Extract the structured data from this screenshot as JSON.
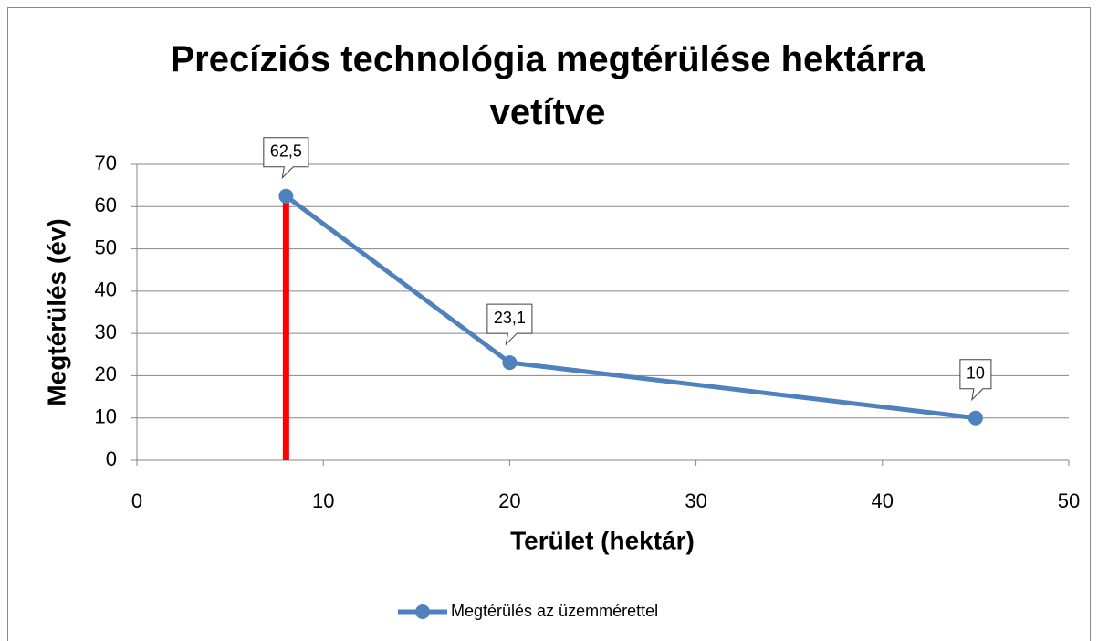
{
  "chart_data": {
    "type": "line",
    "title": "Precíziós technológia megtérülése hektárra vetítve",
    "xlabel": "Terület (hektár)",
    "ylabel": "Megtérülés (év)",
    "series": [
      {
        "name": "Megtérülés az üzemmérettel",
        "color": "#4f81bd",
        "x": [
          8,
          20,
          45
        ],
        "values": [
          62.5,
          23.1,
          10
        ],
        "value_labels": [
          "62,5",
          "23,1",
          "10"
        ]
      },
      {
        "color": "#ff0000",
        "x": [
          8,
          8
        ],
        "values": [
          0,
          62.5
        ]
      }
    ],
    "xlim": [
      0,
      50
    ],
    "xticks": [
      0,
      10,
      20,
      30,
      40,
      50
    ],
    "ylim": [
      0,
      70
    ],
    "yticks": [
      0,
      10,
      20,
      30,
      40,
      50,
      60,
      70
    ],
    "grid": true,
    "legend": "bottom"
  }
}
